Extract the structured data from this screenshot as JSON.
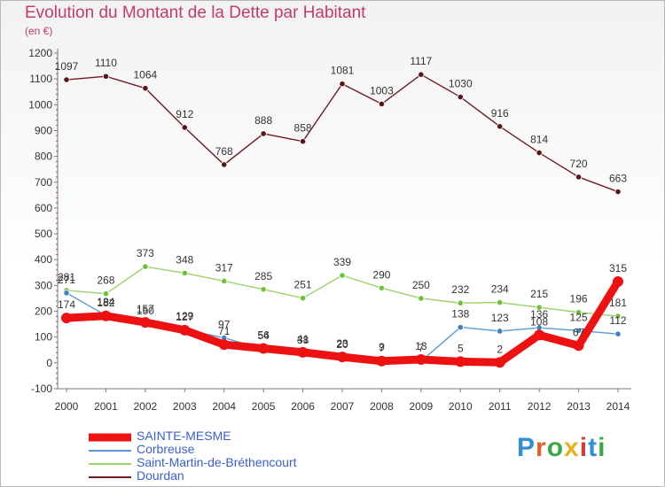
{
  "title": "Evolution du Montant de la Dette par Habitant",
  "subtitle": "(en €)",
  "logo": {
    "text": "Proxiti",
    "colors": [
      "#2f8fd8",
      "#e0602a",
      "#3aa84a",
      "#e8b020",
      "#d83a3a",
      "#2f8fd8",
      "#3aa84a"
    ]
  },
  "chart_data": {
    "type": "line",
    "title": "Evolution du Montant de la Dette par Habitant",
    "ylabel": "(en €)",
    "x": [
      "2000",
      "2001",
      "2002",
      "2003",
      "2004",
      "2005",
      "2006",
      "2007",
      "2008",
      "2009",
      "2010",
      "2011",
      "2012",
      "2013",
      "2014"
    ],
    "yticks": [
      -100,
      0,
      100,
      200,
      300,
      400,
      500,
      600,
      700,
      800,
      900,
      1000,
      1100,
      1200
    ],
    "ylim": [
      -100,
      1200
    ],
    "grid": false,
    "legend_position": "bottom-left",
    "series": [
      {
        "name": "Dourdan",
        "color": "#6e1e24",
        "marker": "#5a1418",
        "values": [
          1097,
          1110,
          1064,
          912,
          768,
          888,
          858,
          1081,
          1003,
          1117,
          1030,
          916,
          814,
          720,
          663
        ],
        "labels": [
          "1097",
          "1110",
          "1064",
          "912",
          "768",
          "888",
          "858",
          "1081",
          "1003",
          "1117",
          "1030",
          "916",
          "814",
          "720",
          "663"
        ]
      },
      {
        "name": "Saint-Martin-de-Bréthencourt",
        "color": "#9ad36a",
        "marker": "#6ec23a",
        "values": [
          281,
          268,
          373,
          348,
          317,
          285,
          251,
          339,
          290,
          250,
          232,
          234,
          215,
          196,
          181
        ],
        "labels": [
          "281",
          "268",
          "373",
          "348",
          "317",
          "285",
          "251",
          "339",
          "290",
          "250",
          "232",
          "234",
          "215",
          "196",
          "181"
        ]
      },
      {
        "name": "Corbreuse",
        "color": "#5a9bd4",
        "marker": "#3d80c4",
        "values": [
          271,
          184,
          150,
          129,
          97,
          54,
          38,
          20,
          9,
          7,
          138,
          123,
          136,
          125,
          112
        ],
        "labels": [
          "271",
          "184",
          "150",
          "129",
          "97",
          "54",
          "38",
          "20",
          "9",
          "7",
          "138",
          "123",
          "136",
          "125",
          "112"
        ]
      },
      {
        "name": "SAINTE-MESME",
        "color": "#ee1111",
        "marker": "#ee1111",
        "values": [
          174,
          182,
          157,
          127,
          71,
          56,
          41,
          23,
          7,
          13,
          5,
          2,
          108,
          67,
          315
        ],
        "labels": [
          "174",
          "182",
          "157",
          "127",
          "71",
          "56",
          "41",
          "23",
          "7",
          "13",
          "5",
          "2",
          "108",
          "67",
          "315"
        ]
      }
    ]
  }
}
